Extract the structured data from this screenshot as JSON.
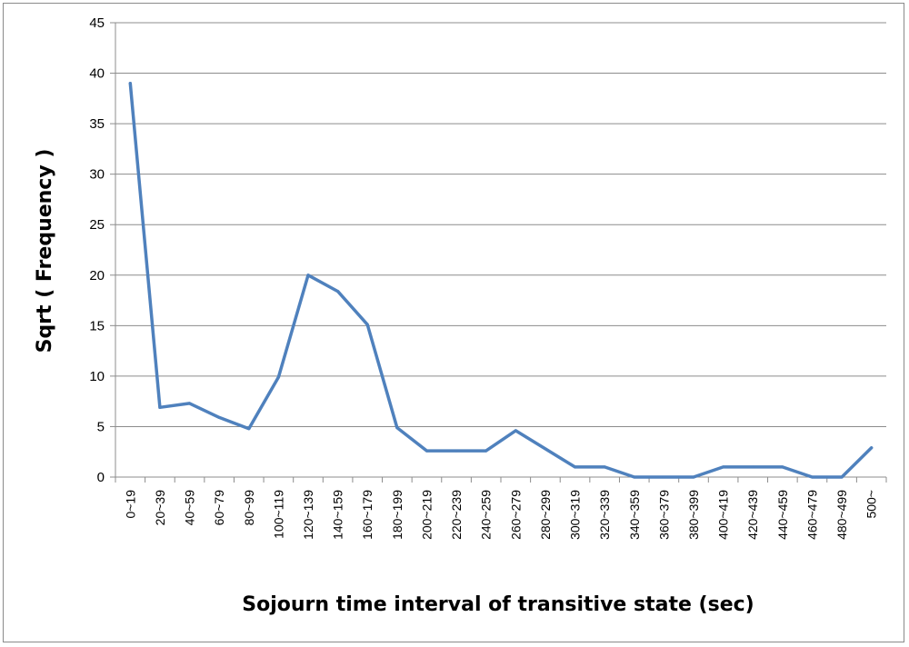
{
  "chart_data": {
    "type": "line",
    "title": "",
    "xlabel": "Sojourn time interval of transitive state (sec)",
    "ylabel": "Sqrt ( Frequency )",
    "ylim": [
      0,
      45
    ],
    "yticks": [
      "0",
      "5",
      "10",
      "15",
      "20",
      "25",
      "30",
      "35",
      "40",
      "45"
    ],
    "grid": true,
    "legend": "none",
    "categories": [
      "0~19",
      "20~39",
      "40~59",
      "60~79",
      "80~99",
      "100~119",
      "120~139",
      "140~159",
      "160~179",
      "180~199",
      "200~219",
      "220~239",
      "240~259",
      "260~279",
      "280~299",
      "300~319",
      "320~339",
      "340~359",
      "360~379",
      "380~399",
      "400~419",
      "420~439",
      "440~459",
      "460~479",
      "480~499",
      "500~"
    ],
    "series": [
      {
        "values": [
          39,
          6.9,
          7.3,
          5.9,
          4.8,
          9.9,
          20,
          18.4,
          15.1,
          4.9,
          2.6,
          2.6,
          2.6,
          4.6,
          2.8,
          1.0,
          1.0,
          0,
          0,
          0,
          1.0,
          1.0,
          1.0,
          0,
          0,
          2.9
        ],
        "color": "#4f81bd"
      }
    ]
  }
}
